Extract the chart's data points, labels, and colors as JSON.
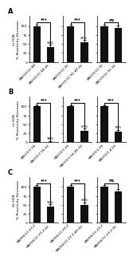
{
  "panels": {
    "A": {
      "subplots": [
        {
          "bars": [
            100,
            42
          ],
          "errors": [
            3,
            6
          ],
          "sig": "***",
          "num_label": "58%",
          "xlabels": [
            "RA015/11.88",
            "RA015/11.88-GL"
          ],
          "ylabel": "cit-H2B\n% Reactivity Decrease"
        },
        {
          "bars": [
            100,
            55
          ],
          "errors": [
            3,
            6
          ],
          "sig": "***",
          "num_label": "45%",
          "xlabels": [
            "RA015/11.91",
            "RA015/11.91-40-GL"
          ],
          "ylabel": "cit-H2B\n% Reactivity Decrease"
        },
        {
          "bars": [
            100,
            95
          ],
          "errors": [
            3,
            6
          ],
          "sig": "ns",
          "num_label": "",
          "xlabels": [
            "RA015/11.91",
            "RA015/11.91-GL"
          ],
          "ylabel": "cit-H2B\n% Reactivity Decrease"
        }
      ]
    },
    "B": {
      "subplots": [
        {
          "bars": [
            100,
            2
          ],
          "errors": [
            3,
            2
          ],
          "sig": "***",
          "num_label": "98%",
          "xlabels": [
            "RA015/1.56",
            "RA015/1.56-GL"
          ],
          "ylabel": "cit-H2B\n% Reactivity Decrease"
        },
        {
          "bars": [
            100,
            33
          ],
          "errors": [
            3,
            5
          ],
          "sig": "***",
          "num_label": "67%",
          "xlabels": [
            "RA015/1.56",
            "RA015/1.56-40-GL"
          ],
          "ylabel": "cit-H2B\n% Reactivity Decrease"
        },
        {
          "bars": [
            100,
            30
          ],
          "errors": [
            3,
            5
          ],
          "sig": "***",
          "num_label": "70%",
          "xlabels": [
            "RA015/1.56",
            "RA015/1.4-GL"
          ],
          "ylabel": "cit-H2B\n% Reactivity Decrease"
        }
      ]
    },
    "C": {
      "subplots": [
        {
          "bars": [
            100,
            45
          ],
          "errors": [
            4,
            7
          ],
          "sig": "***",
          "num_label": "55%",
          "xlabels": [
            "RA056/11.23.2",
            "RA056/11.23.2-GL"
          ],
          "ylabel": "Cit-H2B\n% Reactivity Decrease"
        },
        {
          "bars": [
            100,
            50
          ],
          "errors": [
            4,
            7
          ],
          "sig": "***",
          "num_label": "50%",
          "xlabels": [
            "RA056/11.23.2",
            "RA056/11.23.2-40-GL"
          ],
          "ylabel": "Cit-H2B\n% Reactivity Decrease"
        },
        {
          "bars": [
            100,
            88
          ],
          "errors": [
            4,
            7
          ],
          "sig": "ns",
          "num_label": "",
          "xlabels": [
            "RA056/11.23.2",
            "RA056/11.23.2-GL"
          ],
          "ylabel": "Cit-H2B\n% Reactivity Decrease"
        }
      ]
    }
  },
  "panel_labels": [
    "A",
    "B",
    "C"
  ],
  "bar_color": "#111111",
  "error_color": "#111111",
  "yticks": [
    0,
    25,
    50,
    75,
    100
  ],
  "yticklabels": [
    "0",
    "25",
    "50",
    "75",
    "100"
  ],
  "ylim": [
    0,
    128
  ],
  "tick_fontsize": 3.2,
  "label_fontsize": 3.2,
  "sig_fontsize": 4.0,
  "num_fontsize": 3.0,
  "panel_label_fontsize": 6.0
}
